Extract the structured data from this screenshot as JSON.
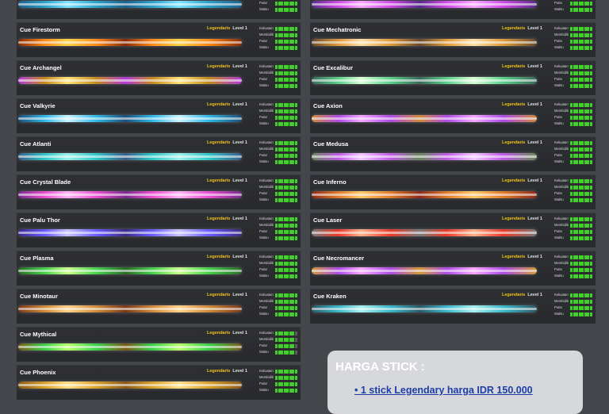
{
  "stat_labels": [
    "Kekuatan",
    "Membidik",
    "Putar",
    "Waktu"
  ],
  "rarity_label": "Legendaris",
  "level_label": "Level 1",
  "left_column": [
    {
      "name": "",
      "stats": [
        8,
        8,
        8,
        8
      ],
      "colors": [
        "#2a9fc9",
        "#7de3ff",
        "#1e5f8a"
      ]
    },
    {
      "name": "Cue Firestorm",
      "stats": [
        8,
        8,
        8,
        8
      ],
      "colors": [
        "#ff8a1c",
        "#ffd34a",
        "#8a2a00"
      ]
    },
    {
      "name": "Cue Archangel",
      "stats": [
        8,
        8,
        8,
        8
      ],
      "colors": [
        "#c48a1c",
        "#ffe27a",
        "#b23ad8"
      ]
    },
    {
      "name": "Cue Valkyrie",
      "stats": [
        8,
        8,
        8,
        8
      ],
      "colors": [
        "#2fb8e6",
        "#c9f4ff",
        "#1a4f7a"
      ]
    },
    {
      "name": "Cue Atlanti",
      "stats": [
        8,
        8,
        8,
        8
      ],
      "colors": [
        "#2fc7c7",
        "#9af0e8",
        "#3a5f8a"
      ]
    },
    {
      "name": "Cue Crystal Blade",
      "stats": [
        8,
        8,
        8,
        8
      ],
      "colors": [
        "#e84fd0",
        "#ffb3f2",
        "#7a2a8a"
      ]
    },
    {
      "name": "Cue Palu Thor",
      "stats": [
        8,
        8,
        8,
        8
      ],
      "colors": [
        "#6a5cff",
        "#c9c4ff",
        "#3a2a8a"
      ]
    },
    {
      "name": "Cue Plasma",
      "stats": [
        8,
        8,
        8,
        8
      ],
      "colors": [
        "#44d04a",
        "#c9ff8a",
        "#2a6a2a"
      ]
    },
    {
      "name": "Cue Minotaur",
      "stats": [
        8,
        8,
        8,
        8
      ],
      "colors": [
        "#d08a3a",
        "#ffd28a",
        "#7a3a1a"
      ]
    },
    {
      "name": "Cue Mythical",
      "stats": [
        7,
        7,
        7,
        7
      ],
      "colors": [
        "#3ad04a",
        "#b8ff6a",
        "#7a5a1a"
      ]
    },
    {
      "name": "Cue Phoenix",
      "stats": [
        8,
        8,
        8,
        8
      ],
      "colors": [
        "#d8a02a",
        "#ffe08a",
        "#8a5a1a"
      ]
    }
  ],
  "right_column": [
    {
      "name": "",
      "stats": [
        8,
        8,
        8,
        8
      ],
      "colors": [
        "#d04ae8",
        "#f7a8ff",
        "#5a2a8a"
      ]
    },
    {
      "name": "Cue Mechatronic",
      "stats": [
        8,
        8,
        8,
        8
      ],
      "colors": [
        "#e09a3a",
        "#ffe0a8",
        "#6a4a2a"
      ]
    },
    {
      "name": "Cue Excalibur",
      "stats": [
        8,
        8,
        8,
        8
      ],
      "colors": [
        "#5ad08a",
        "#d8ffd8",
        "#3a6a5a"
      ]
    },
    {
      "name": "Cue Axion",
      "stats": [
        8,
        8,
        8,
        8
      ],
      "colors": [
        "#b04ae8",
        "#f0a8ff",
        "#d08a3a"
      ]
    },
    {
      "name": "Cue Medusa",
      "stats": [
        8,
        8,
        8,
        8
      ],
      "colors": [
        "#c05ae8",
        "#f2c8ff",
        "#6a8a5a"
      ]
    },
    {
      "name": "Cue Inferno",
      "stats": [
        8,
        8,
        8,
        8
      ],
      "colors": [
        "#e07a2a",
        "#ffc86a",
        "#8a2a1a"
      ]
    },
    {
      "name": "Cue Laser",
      "stats": [
        8,
        8,
        8,
        8
      ],
      "colors": [
        "#e83a2a",
        "#ffb08a",
        "#7a7a7a"
      ]
    },
    {
      "name": "Cue Necromancer",
      "stats": [
        8,
        8,
        8,
        8
      ],
      "colors": [
        "#b04ae8",
        "#f7a8ff",
        "#d09a3a"
      ]
    },
    {
      "name": "Cue Kraken",
      "stats": [
        8,
        8,
        8,
        8
      ],
      "colors": [
        "#3ab8c8",
        "#a8f0f0",
        "#2a5a6a"
      ]
    }
  ],
  "price": {
    "title": "HARGA STICK :",
    "line": "• 1 stick Legendary harga IDR 150.000"
  }
}
